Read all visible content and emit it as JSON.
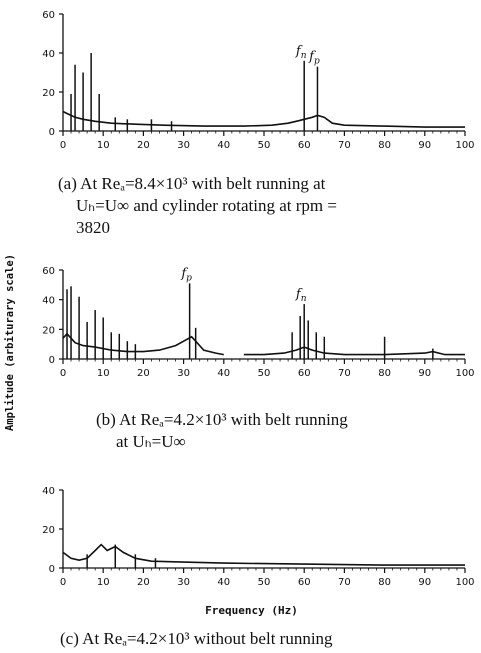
{
  "chart_data": [
    {
      "type": "line",
      "panel": "a",
      "caption": [
        "(a) At Reₐ=8.4×10³ with belt running at",
        "Uₕ=U∞ and cylinder rotating at rpm =",
        "3820"
      ],
      "x_ticks": [
        0,
        10,
        20,
        30,
        40,
        50,
        60,
        70,
        80,
        90,
        100
      ],
      "y_ticks": [
        0,
        20,
        40,
        60
      ],
      "xlim": [
        0,
        100
      ],
      "ylim": [
        0,
        60
      ],
      "annotations": [
        {
          "text": "f",
          "sub": "n",
          "x": 60
        },
        {
          "text": "f",
          "sub": "p",
          "x": 63.3
        }
      ],
      "background": [
        [
          0,
          10
        ],
        [
          1,
          9
        ],
        [
          2,
          8
        ],
        [
          3,
          7
        ],
        [
          5,
          6
        ],
        [
          8,
          5
        ],
        [
          12,
          4
        ],
        [
          18,
          3.5
        ],
        [
          25,
          3
        ],
        [
          35,
          2.5
        ],
        [
          45,
          2.5
        ],
        [
          52,
          3
        ],
        [
          56,
          4
        ],
        [
          58,
          5
        ],
        [
          60,
          6
        ],
        [
          62,
          7
        ],
        [
          63.3,
          8
        ],
        [
          65,
          7
        ],
        [
          67,
          4
        ],
        [
          70,
          3
        ],
        [
          80,
          2.5
        ],
        [
          90,
          2
        ],
        [
          100,
          2
        ]
      ],
      "peaks": [
        [
          2,
          19
        ],
        [
          3,
          34
        ],
        [
          5,
          30
        ],
        [
          7,
          40
        ],
        [
          9,
          19
        ],
        [
          13,
          7
        ],
        [
          16,
          6
        ],
        [
          22,
          6
        ],
        [
          27,
          5
        ],
        [
          60,
          36
        ],
        [
          63.3,
          33
        ]
      ]
    },
    {
      "type": "line",
      "panel": "b",
      "caption": [
        "(b) At Reₐ=4.2×10³ with belt running",
        "at Uₕ=U∞"
      ],
      "x_ticks": [
        0,
        10,
        20,
        30,
        40,
        50,
        60,
        70,
        80,
        90,
        100
      ],
      "y_ticks": [
        0,
        20,
        40,
        60
      ],
      "xlim": [
        0,
        100
      ],
      "ylim": [
        0,
        60
      ],
      "annotations": [
        {
          "text": "f",
          "sub": "p",
          "x": 31.5
        },
        {
          "text": "f",
          "sub": "n",
          "x": 60
        }
      ],
      "background": [
        [
          0,
          14
        ],
        [
          1,
          17
        ],
        [
          2,
          14
        ],
        [
          3,
          11
        ],
        [
          5,
          9
        ],
        [
          8,
          8
        ],
        [
          12,
          6
        ],
        [
          16,
          5
        ],
        [
          20,
          5
        ],
        [
          24,
          6
        ],
        [
          28,
          9
        ],
        [
          30,
          12
        ],
        [
          32,
          15
        ],
        [
          33,
          12
        ],
        [
          35,
          6
        ],
        [
          38,
          4
        ],
        [
          40,
          3
        ],
        [
          45,
          3
        ],
        [
          50,
          3
        ],
        [
          55,
          4
        ],
        [
          58,
          6
        ],
        [
          60,
          8
        ],
        [
          62,
          6
        ],
        [
          65,
          4
        ],
        [
          70,
          3
        ],
        [
          80,
          3
        ],
        [
          90,
          4
        ],
        [
          92,
          5
        ],
        [
          95,
          3
        ],
        [
          100,
          3
        ]
      ],
      "peaks": [
        [
          1,
          47
        ],
        [
          2,
          49
        ],
        [
          4,
          42
        ],
        [
          6,
          25
        ],
        [
          8,
          33
        ],
        [
          10,
          28
        ],
        [
          12,
          18
        ],
        [
          14,
          17
        ],
        [
          16,
          12
        ],
        [
          18,
          10
        ],
        [
          31.5,
          51
        ],
        [
          33,
          21
        ],
        [
          57,
          18
        ],
        [
          59,
          29
        ],
        [
          60,
          37
        ],
        [
          61,
          26
        ],
        [
          63,
          18
        ],
        [
          65,
          15
        ],
        [
          80,
          15
        ],
        [
          92,
          7
        ]
      ]
    },
    {
      "type": "line",
      "panel": "c",
      "caption": [
        "(c) At Reₐ=4.2×10³ without belt running"
      ],
      "xlabel": "Frequency (Hz)",
      "ylabel": "Amplitude (arbiturary scale)",
      "x_ticks": [
        0,
        10,
        20,
        30,
        40,
        50,
        60,
        70,
        80,
        90,
        100
      ],
      "y_ticks": [
        0,
        20,
        40
      ],
      "xlim": [
        0,
        100
      ],
      "ylim": [
        0,
        40
      ],
      "background": [
        [
          0,
          8
        ],
        [
          2,
          5
        ],
        [
          4,
          4
        ],
        [
          6,
          5
        ],
        [
          8,
          9
        ],
        [
          9.5,
          12
        ],
        [
          11,
          9
        ],
        [
          12,
          10
        ],
        [
          13,
          11
        ],
        [
          15,
          8
        ],
        [
          18,
          5
        ],
        [
          22,
          3.5
        ],
        [
          30,
          3
        ],
        [
          40,
          2.5
        ],
        [
          60,
          2
        ],
        [
          80,
          1.5
        ],
        [
          100,
          1.5
        ]
      ],
      "peaks": [
        [
          6,
          7
        ],
        [
          13,
          12
        ],
        [
          18,
          7
        ],
        [
          23,
          5
        ]
      ]
    }
  ]
}
